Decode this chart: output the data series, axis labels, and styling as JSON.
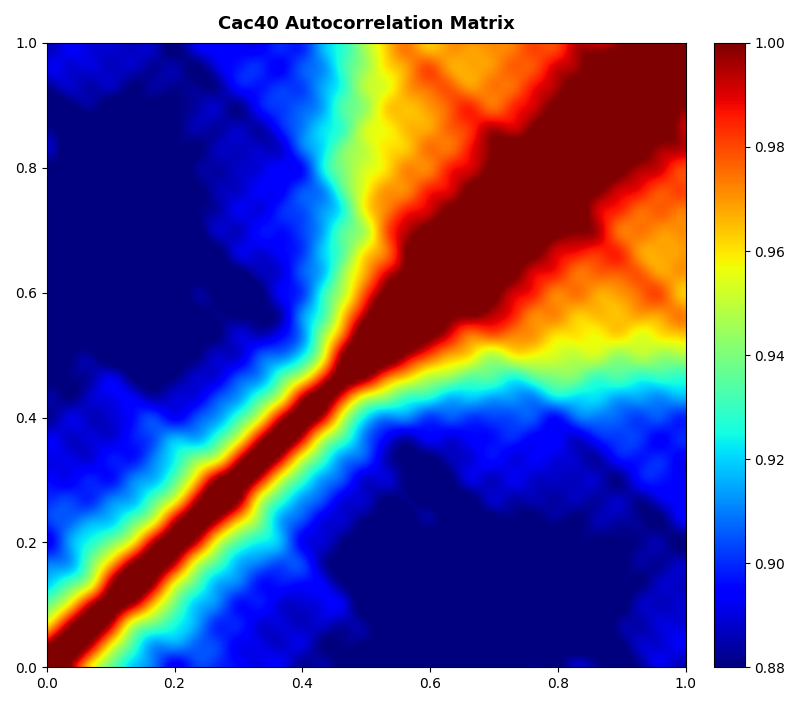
{
  "title": "Cac40 Autocorrelation Matrix",
  "title_fontsize": 13,
  "title_fontweight": "bold",
  "cmap": "jet",
  "vmin": 0.88,
  "vmax": 1.0,
  "colorbar_ticks": [
    0.88,
    0.9,
    0.92,
    0.94,
    0.96,
    0.98,
    1.0
  ],
  "colorbar_labels": [
    "0.88",
    "0.90",
    "0.92",
    "0.94",
    "0.96",
    "0.98",
    "1.00"
  ],
  "xlim": [
    0.0,
    1.0
  ],
  "ylim": [
    0.0,
    1.0
  ],
  "xticks": [
    0.0,
    0.2,
    0.4,
    0.6,
    0.8,
    1.0
  ],
  "yticks": [
    0.0,
    0.2,
    0.4,
    0.6,
    0.8,
    1.0
  ],
  "n": 120,
  "seed": 7,
  "background_color": "#ffffff",
  "figsize": [
    8.0,
    7.06
  ],
  "dpi": 100
}
